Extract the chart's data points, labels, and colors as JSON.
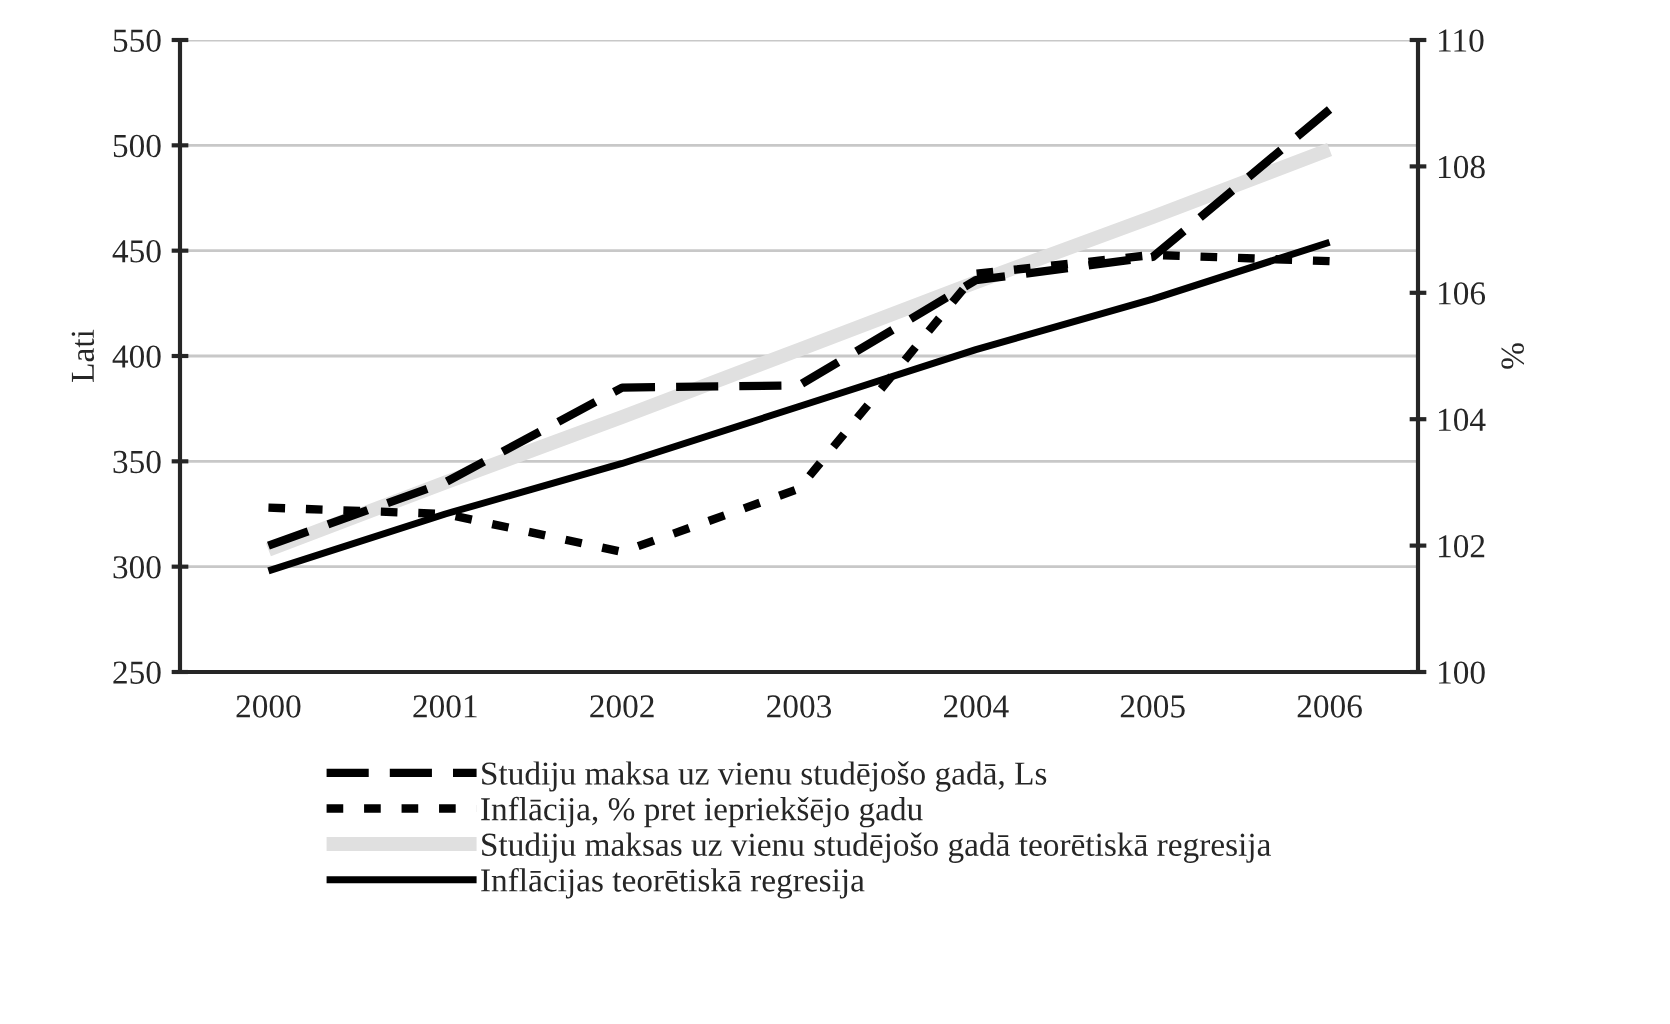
{
  "chart_data": {
    "type": "line",
    "ylabel": "Lati",
    "y2label": "%",
    "categories": [
      "2000",
      "2001",
      "2002",
      "2003",
      "2004",
      "2005",
      "2006"
    ],
    "series": [
      {
        "name": "Studiju maksa uz vienu studējošo gadā, Ls",
        "color": "#000000",
        "line_style": "dashed",
        "values": [
          310,
          340,
          385,
          386,
          436,
          447,
          517
        ]
      },
      {
        "name": "Inflācija, % pret iepriekšējo gadu",
        "color": "#000000",
        "line_style": "dotted",
        "axis": "y2",
        "values": [
          102.6,
          102.5,
          101.9,
          102.9,
          106.3,
          106.6,
          106.5
        ]
      },
      {
        "name": "Studiju maksas uz vienu studējošo gadā teorētiskā regresija",
        "color": "#e0e0e0",
        "line_style": "solid",
        "values": [
          308,
          340,
          371,
          403,
          435,
          466,
          498
        ]
      },
      {
        "name": "Inflācijas teorētiskā regresija",
        "color": "#000000",
        "line_style": "solid",
        "axis": "y2",
        "values": [
          101.6,
          102.5,
          103.3,
          104.2,
          105.1,
          105.9,
          106.8
        ]
      }
    ],
    "ylim": [
      250,
      550
    ],
    "yticks": [
      250,
      300,
      350,
      400,
      450,
      500,
      550
    ],
    "y2lim": [
      100,
      110
    ],
    "y2ticks": [
      100,
      102,
      104,
      106,
      108,
      110
    ],
    "grid": "y",
    "legend": "bottom"
  }
}
